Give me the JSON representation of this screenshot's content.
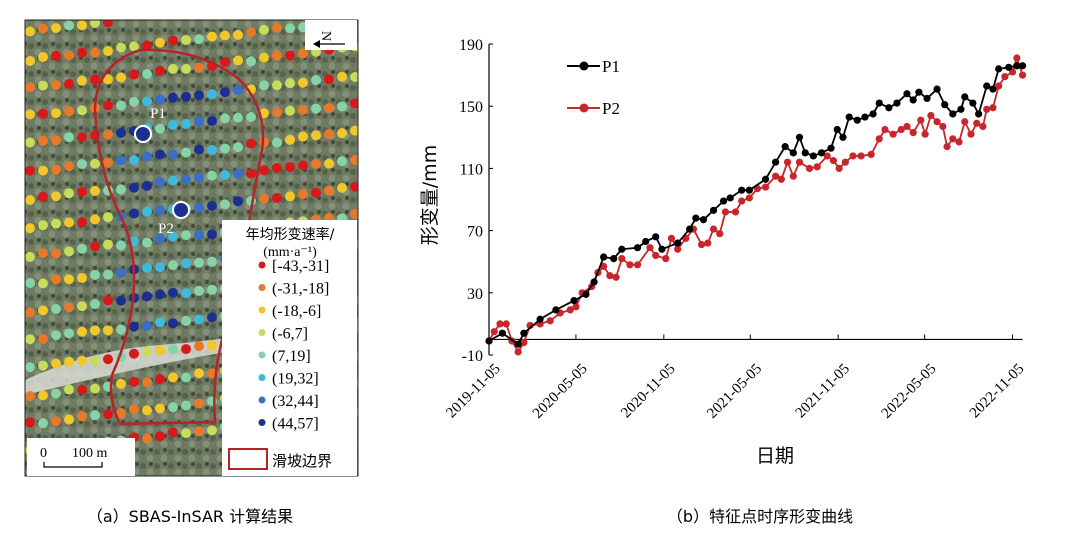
{
  "map_panel": {
    "caption": "（a）SBAS-InSAR 计算结果",
    "points": [
      {
        "label": "P1"
      },
      {
        "label": "P2"
      }
    ],
    "north_label": "N",
    "scale_bar": {
      "zero": "0",
      "distance": "100 m"
    },
    "legend": {
      "title_line1": "年均形变速率/",
      "title_line2": "(mm·a⁻¹)",
      "classes": [
        {
          "label": "[-43,-31]",
          "color": "#d7191c"
        },
        {
          "label": "(-31,-18]",
          "color": "#e8792a"
        },
        {
          "label": "(-18,-6]",
          "color": "#f0c82a"
        },
        {
          "label": "(-6,7]",
          "color": "#c6dc5a"
        },
        {
          "label": "(7,19]",
          "color": "#86d3a8"
        },
        {
          "label": "(19,32]",
          "color": "#3fb9dc"
        },
        {
          "label": "(32,44]",
          "color": "#3a6fc8"
        },
        {
          "label": "(44,57]",
          "color": "#1a2f8f"
        }
      ],
      "boundary_label": "滑坡边界",
      "boundary_color": "#b8232a"
    }
  },
  "chart_panel": {
    "caption": "（b）特征点时序形变曲线"
  },
  "chart_data": {
    "type": "line",
    "title": "",
    "xlabel": "日期",
    "ylabel": "形变量/mm",
    "x_unit": "days since 2019-11-05",
    "xlim": [
      0,
      1120
    ],
    "ylim": [
      -10,
      190
    ],
    "yticks": [
      -10,
      30,
      70,
      110,
      150,
      190
    ],
    "xticks": [
      {
        "day": 0,
        "label": "2019-11-05"
      },
      {
        "day": 182,
        "label": "2020-05-05"
      },
      {
        "day": 366,
        "label": "2020-11-05"
      },
      {
        "day": 547,
        "label": "2021-05-05"
      },
      {
        "day": 731,
        "label": "2021-11-05"
      },
      {
        "day": 912,
        "label": "2022-05-05"
      },
      {
        "day": 1096,
        "label": "2022-11-05"
      }
    ],
    "legend_position": "top-left",
    "grid": false,
    "series": [
      {
        "name": "P1",
        "color": "#000000",
        "points": [
          [
            0,
            -1
          ],
          [
            28,
            4
          ],
          [
            61,
            -3
          ],
          [
            73,
            4
          ],
          [
            107,
            13
          ],
          [
            140,
            19
          ],
          [
            178,
            25
          ],
          [
            203,
            29
          ],
          [
            220,
            37
          ],
          [
            240,
            53
          ],
          [
            261,
            52
          ],
          [
            278,
            58
          ],
          [
            311,
            59
          ],
          [
            328,
            63
          ],
          [
            349,
            66
          ],
          [
            362,
            58
          ],
          [
            395,
            62
          ],
          [
            420,
            71
          ],
          [
            433,
            78
          ],
          [
            449,
            77
          ],
          [
            470,
            83
          ],
          [
            491,
            89
          ],
          [
            505,
            91
          ],
          [
            529,
            96
          ],
          [
            545,
            96
          ],
          [
            579,
            103
          ],
          [
            600,
            114
          ],
          [
            620,
            124
          ],
          [
            637,
            120
          ],
          [
            650,
            130
          ],
          [
            662,
            120
          ],
          [
            679,
            118
          ],
          [
            696,
            120
          ],
          [
            716,
            123
          ],
          [
            729,
            135
          ],
          [
            741,
            130
          ],
          [
            754,
            143
          ],
          [
            771,
            141
          ],
          [
            787,
            143
          ],
          [
            804,
            145
          ],
          [
            817,
            152
          ],
          [
            837,
            149
          ],
          [
            854,
            152
          ],
          [
            875,
            158
          ],
          [
            888,
            154
          ],
          [
            900,
            159
          ],
          [
            917,
            155
          ],
          [
            938,
            161
          ],
          [
            954,
            151
          ],
          [
            971,
            145
          ],
          [
            988,
            148
          ],
          [
            996,
            156
          ],
          [
            1013,
            152
          ],
          [
            1025,
            145
          ],
          [
            1042,
            163
          ],
          [
            1055,
            161
          ],
          [
            1067,
            174
          ],
          [
            1088,
            175
          ],
          [
            1105,
            176
          ],
          [
            1117,
            176
          ]
        ]
      },
      {
        "name": "P2",
        "color": "#c8262c",
        "points": [
          [
            0,
            -1
          ],
          [
            11,
            5
          ],
          [
            23,
            10
          ],
          [
            36,
            10
          ],
          [
            48,
            -1
          ],
          [
            61,
            -8
          ],
          [
            73,
            -2
          ],
          [
            86,
            9
          ],
          [
            107,
            10
          ],
          [
            128,
            12
          ],
          [
            149,
            17
          ],
          [
            170,
            19
          ],
          [
            182,
            21
          ],
          [
            195,
            30
          ],
          [
            215,
            34
          ],
          [
            228,
            43
          ],
          [
            240,
            47
          ],
          [
            253,
            41
          ],
          [
            266,
            40
          ],
          [
            278,
            52
          ],
          [
            295,
            48
          ],
          [
            311,
            48
          ],
          [
            337,
            59
          ],
          [
            349,
            54
          ],
          [
            370,
            52
          ],
          [
            382,
            65
          ],
          [
            395,
            58
          ],
          [
            412,
            65
          ],
          [
            428,
            71
          ],
          [
            445,
            61
          ],
          [
            458,
            62
          ],
          [
            470,
            71
          ],
          [
            483,
            68
          ],
          [
            495,
            82
          ],
          [
            516,
            82
          ],
          [
            529,
            89
          ],
          [
            545,
            91
          ],
          [
            562,
            97
          ],
          [
            579,
            98
          ],
          [
            600,
            105
          ],
          [
            612,
            103
          ],
          [
            625,
            114
          ],
          [
            637,
            105
          ],
          [
            650,
            114
          ],
          [
            671,
            110
          ],
          [
            687,
            111
          ],
          [
            708,
            118
          ],
          [
            721,
            115
          ],
          [
            733,
            110
          ],
          [
            746,
            114
          ],
          [
            762,
            118
          ],
          [
            779,
            118
          ],
          [
            800,
            119
          ],
          [
            817,
            129
          ],
          [
            829,
            135
          ],
          [
            846,
            132
          ],
          [
            863,
            135
          ],
          [
            875,
            137
          ],
          [
            888,
            133
          ],
          [
            904,
            141
          ],
          [
            913,
            132
          ],
          [
            925,
            144
          ],
          [
            938,
            140
          ],
          [
            950,
            137
          ],
          [
            959,
            124
          ],
          [
            971,
            129
          ],
          [
            984,
            127
          ],
          [
            996,
            140
          ],
          [
            1009,
            132
          ],
          [
            1021,
            139
          ],
          [
            1034,
            137
          ],
          [
            1042,
            148
          ],
          [
            1055,
            149
          ],
          [
            1067,
            163
          ],
          [
            1080,
            169
          ],
          [
            1096,
            172
          ],
          [
            1105,
            181
          ],
          [
            1117,
            170
          ]
        ]
      }
    ]
  }
}
